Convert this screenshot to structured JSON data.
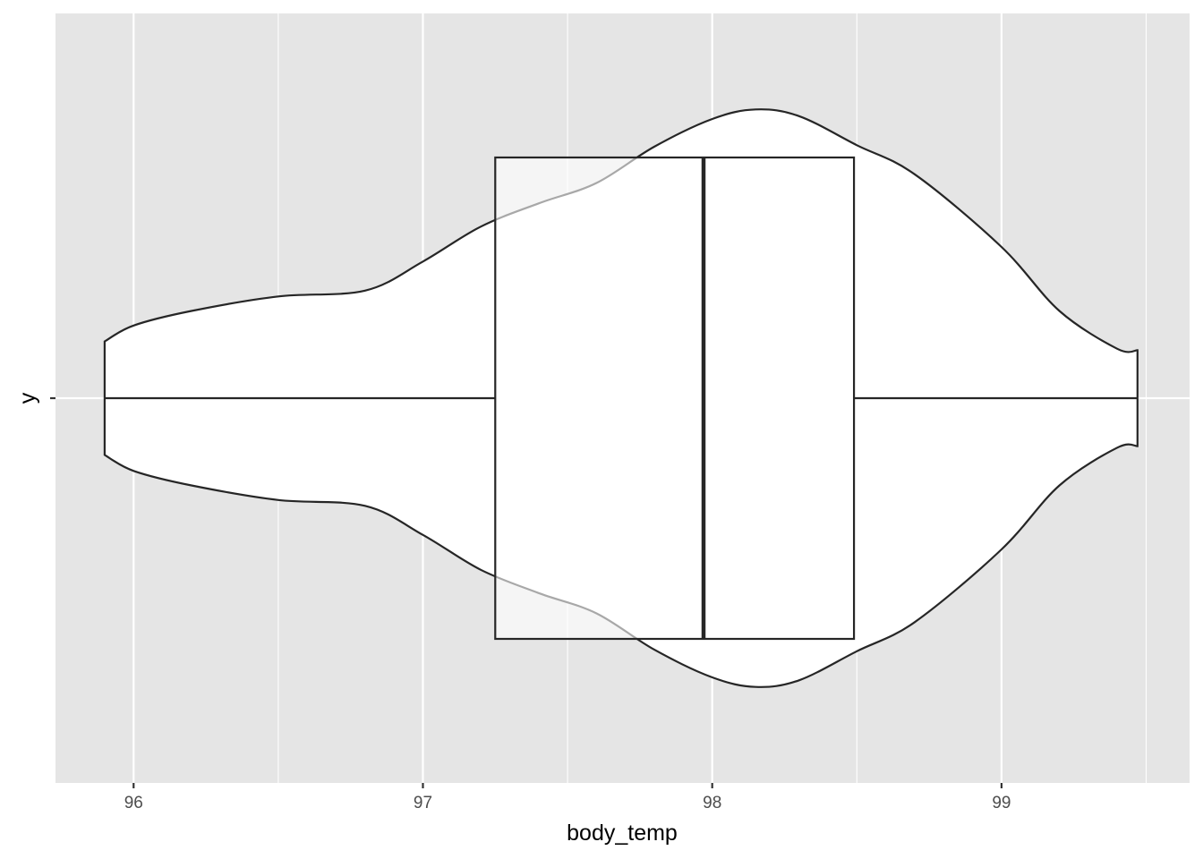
{
  "chart_data": {
    "type": "violin+boxplot",
    "orientation": "horizontal",
    "xlabel": "body_temp",
    "ylabel": "y",
    "xlim": [
      95.73,
      99.65
    ],
    "x_ticks": [
      "96",
      "97",
      "98",
      "99"
    ],
    "x_tick_values": [
      96,
      97,
      98,
      99
    ],
    "x_minor_grid": [
      96.5,
      97.5,
      98.5,
      99.5
    ],
    "y_ticks": [
      ""
    ],
    "grid": true,
    "panel_background": "#e5e5e5",
    "gridline_color": "#ffffff",
    "fill_color": "#ffffff",
    "line_color": "#262626",
    "boxplot": {
      "min": 95.9,
      "q1": 97.25,
      "median": 97.97,
      "q3": 98.49,
      "max": 99.47
    },
    "violin_density": {
      "x": [
        95.9,
        96.0,
        96.2,
        96.5,
        96.8,
        97.0,
        97.2,
        97.4,
        97.6,
        97.8,
        98.0,
        98.15,
        98.3,
        98.5,
        98.7,
        99.0,
        99.2,
        99.4,
        99.47
      ],
      "half_width": [
        0.195,
        0.25,
        0.3,
        0.35,
        0.37,
        0.47,
        0.59,
        0.67,
        0.74,
        0.865,
        0.96,
        0.993,
        0.97,
        0.87,
        0.77,
        0.52,
        0.3,
        0.17,
        0.165
      ]
    }
  }
}
